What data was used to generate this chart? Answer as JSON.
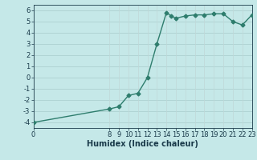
{
  "xlabel": "Humidex (Indice chaleur)",
  "xlim": [
    0,
    23
  ],
  "ylim": [
    -4.5,
    6.5
  ],
  "xticks": [
    0,
    8,
    9,
    10,
    11,
    12,
    13,
    14,
    15,
    16,
    17,
    18,
    19,
    20,
    21,
    22,
    23
  ],
  "yticks": [
    -4,
    -3,
    -2,
    -1,
    0,
    1,
    2,
    3,
    4,
    5,
    6
  ],
  "line1_x": [
    0,
    8,
    9,
    10,
    11,
    12,
    13,
    14,
    14.5,
    15,
    16,
    17,
    18,
    19,
    20,
    21,
    22,
    23
  ],
  "line1_y": [
    -4.0,
    -2.8,
    -2.6,
    -1.6,
    -1.4,
    0.0,
    3.0,
    5.8,
    5.5,
    5.3,
    5.5,
    5.6,
    5.6,
    5.7,
    5.7,
    5.0,
    4.7,
    5.6
  ],
  "line_color": "#2e7d6d",
  "bg_color": "#c5e8e8",
  "grid_hcolor": "#a8cccc",
  "grid_vcolor": "#c0d8d8",
  "marker": "D",
  "marker_size": 2.5,
  "linewidth": 1.0,
  "font_color": "#1a3a4a",
  "xlabel_fontsize": 7,
  "tick_fontsize": 6
}
